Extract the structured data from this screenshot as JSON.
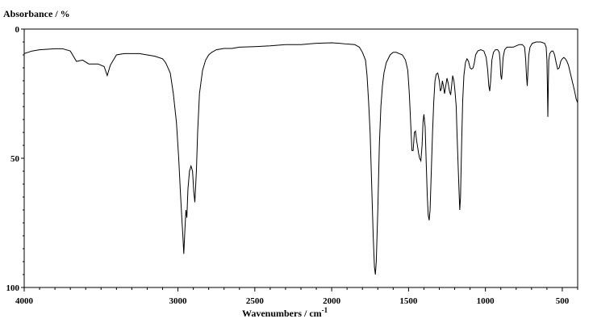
{
  "chart_data": {
    "type": "line",
    "ylabel": "Absorbance / %",
    "xlabel": "Wavenumbers / cm",
    "xlabel_superscript": "-1",
    "xlim": [
      4000,
      400
    ],
    "ylim": [
      0,
      100
    ],
    "x_ticks": [
      4000,
      3000,
      2500,
      2000,
      1500,
      1000,
      500
    ],
    "y_ticks": [
      0,
      50,
      100
    ],
    "grid": false,
    "line_color": "#000000",
    "series": [
      {
        "points": [
          [
            4000,
            9.5
          ],
          [
            3950,
            8.5
          ],
          [
            3900,
            8.0
          ],
          [
            3850,
            7.8
          ],
          [
            3800,
            7.6
          ],
          [
            3750,
            7.6
          ],
          [
            3700,
            8.5
          ],
          [
            3660,
            12.5
          ],
          [
            3620,
            12.0
          ],
          [
            3580,
            13.5
          ],
          [
            3520,
            13.5
          ],
          [
            3480,
            14.5
          ],
          [
            3460,
            18.0
          ],
          [
            3440,
            14.0
          ],
          [
            3400,
            10.0
          ],
          [
            3350,
            9.5
          ],
          [
            3300,
            9.5
          ],
          [
            3250,
            9.5
          ],
          [
            3200,
            10.0
          ],
          [
            3150,
            10.5
          ],
          [
            3100,
            11.5
          ],
          [
            3080,
            13.0
          ],
          [
            3050,
            17.0
          ],
          [
            3030,
            25.0
          ],
          [
            3010,
            36.0
          ],
          [
            2995,
            50.0
          ],
          [
            2985,
            62.0
          ],
          [
            2975,
            73.0
          ],
          [
            2968,
            80.0
          ],
          [
            2962,
            87.0
          ],
          [
            2955,
            78.0
          ],
          [
            2948,
            70.0
          ],
          [
            2942,
            73.0
          ],
          [
            2935,
            62.0
          ],
          [
            2925,
            55.0
          ],
          [
            2915,
            53.0
          ],
          [
            2905,
            55.0
          ],
          [
            2897,
            63.0
          ],
          [
            2890,
            67.0
          ],
          [
            2880,
            55.0
          ],
          [
            2872,
            40.0
          ],
          [
            2860,
            25.0
          ],
          [
            2840,
            16.0
          ],
          [
            2820,
            12.0
          ],
          [
            2800,
            10.0
          ],
          [
            2780,
            9.0
          ],
          [
            2750,
            8.0
          ],
          [
            2700,
            7.5
          ],
          [
            2650,
            7.5
          ],
          [
            2600,
            7.0
          ],
          [
            2500,
            6.8
          ],
          [
            2400,
            6.5
          ],
          [
            2300,
            6.0
          ],
          [
            2200,
            6.0
          ],
          [
            2100,
            5.5
          ],
          [
            2000,
            5.3
          ],
          [
            1950,
            5.5
          ],
          [
            1900,
            5.8
          ],
          [
            1850,
            6.0
          ],
          [
            1820,
            7.0
          ],
          [
            1800,
            9.0
          ],
          [
            1780,
            12.0
          ],
          [
            1770,
            18.0
          ],
          [
            1760,
            28.0
          ],
          [
            1750,
            40.0
          ],
          [
            1740,
            60.0
          ],
          [
            1730,
            80.0
          ],
          [
            1722,
            92.0
          ],
          [
            1716,
            95.0
          ],
          [
            1710,
            90.0
          ],
          [
            1700,
            70.0
          ],
          [
            1690,
            45.0
          ],
          [
            1680,
            30.0
          ],
          [
            1670,
            22.0
          ],
          [
            1660,
            17.0
          ],
          [
            1645,
            13.0
          ],
          [
            1620,
            10.0
          ],
          [
            1600,
            9.0
          ],
          [
            1580,
            9.0
          ],
          [
            1560,
            9.5
          ],
          [
            1540,
            10.0
          ],
          [
            1520,
            12.0
          ],
          [
            1505,
            16.0
          ],
          [
            1495,
            25.0
          ],
          [
            1485,
            38.0
          ],
          [
            1478,
            47.0
          ],
          [
            1470,
            47.0
          ],
          [
            1462,
            40.0
          ],
          [
            1455,
            39.5
          ],
          [
            1448,
            43.0
          ],
          [
            1440,
            46.0
          ],
          [
            1435,
            48.0
          ],
          [
            1428,
            50.0
          ],
          [
            1420,
            51.0
          ],
          [
            1412,
            45.0
          ],
          [
            1406,
            36.0
          ],
          [
            1400,
            33.0
          ],
          [
            1392,
            38.0
          ],
          [
            1385,
            52.0
          ],
          [
            1378,
            65.0
          ],
          [
            1372,
            72.0
          ],
          [
            1366,
            74.0
          ],
          [
            1360,
            70.0
          ],
          [
            1352,
            55.0
          ],
          [
            1344,
            40.0
          ],
          [
            1336,
            28.0
          ],
          [
            1328,
            20.0
          ],
          [
            1320,
            17.5
          ],
          [
            1310,
            17.0
          ],
          [
            1300,
            20.0
          ],
          [
            1293,
            24.0
          ],
          [
            1286,
            23.0
          ],
          [
            1280,
            20.0
          ],
          [
            1273,
            22.0
          ],
          [
            1266,
            25.0
          ],
          [
            1258,
            22.0
          ],
          [
            1250,
            19.0
          ],
          [
            1242,
            21.0
          ],
          [
            1234,
            24.0
          ],
          [
            1226,
            25.5
          ],
          [
            1220,
            22.0
          ],
          [
            1213,
            18.0
          ],
          [
            1205,
            20.0
          ],
          [
            1198,
            24.0
          ],
          [
            1190,
            30.0
          ],
          [
            1185,
            40.0
          ],
          [
            1178,
            52.0
          ],
          [
            1172,
            62.0
          ],
          [
            1167,
            70.0
          ],
          [
            1162,
            65.0
          ],
          [
            1155,
            45.0
          ],
          [
            1148,
            28.0
          ],
          [
            1140,
            18.0
          ],
          [
            1130,
            13.0
          ],
          [
            1120,
            11.5
          ],
          [
            1110,
            12.5
          ],
          [
            1100,
            15.0
          ],
          [
            1090,
            15.5
          ],
          [
            1080,
            15.0
          ],
          [
            1072,
            13.0
          ],
          [
            1064,
            10.0
          ],
          [
            1050,
            8.5
          ],
          [
            1030,
            8.0
          ],
          [
            1010,
            8.5
          ],
          [
            995,
            11.0
          ],
          [
            985,
            16.0
          ],
          [
            978,
            22.0
          ],
          [
            972,
            24.0
          ],
          [
            966,
            20.0
          ],
          [
            958,
            12.0
          ],
          [
            948,
            9.0
          ],
          [
            935,
            8.0
          ],
          [
            920,
            8.0
          ],
          [
            910,
            9.0
          ],
          [
            905,
            12.0
          ],
          [
            900,
            18.0
          ],
          [
            895,
            19.5
          ],
          [
            890,
            16.0
          ],
          [
            885,
            11.0
          ],
          [
            875,
            8.0
          ],
          [
            860,
            7.0
          ],
          [
            840,
            7.0
          ],
          [
            820,
            7.0
          ],
          [
            800,
            6.5
          ],
          [
            780,
            6.0
          ],
          [
            760,
            6.0
          ],
          [
            745,
            7.0
          ],
          [
            738,
            12.0
          ],
          [
            733,
            18.0
          ],
          [
            728,
            22.0
          ],
          [
            724,
            17.0
          ],
          [
            718,
            10.0
          ],
          [
            710,
            7.0
          ],
          [
            695,
            5.5
          ],
          [
            670,
            5.0
          ],
          [
            640,
            5.0
          ],
          [
            615,
            5.5
          ],
          [
            605,
            7.0
          ],
          [
            600,
            12.0
          ],
          [
            597,
            22.0
          ],
          [
            594,
            34.0
          ],
          [
            591,
            22.0
          ],
          [
            588,
            12.0
          ],
          [
            582,
            9.5
          ],
          [
            570,
            8.5
          ],
          [
            560,
            8.5
          ],
          [
            550,
            10.0
          ],
          [
            540,
            13.0
          ],
          [
            530,
            15.5
          ],
          [
            520,
            15.0
          ],
          [
            510,
            12.5
          ],
          [
            500,
            11.5
          ],
          [
            490,
            11.0
          ],
          [
            480,
            11.5
          ],
          [
            470,
            12.5
          ],
          [
            460,
            14.0
          ],
          [
            450,
            16.5
          ],
          [
            440,
            19.0
          ],
          [
            430,
            21.5
          ],
          [
            420,
            24.0
          ],
          [
            410,
            27.0
          ],
          [
            400,
            28.5
          ]
        ]
      }
    ]
  }
}
